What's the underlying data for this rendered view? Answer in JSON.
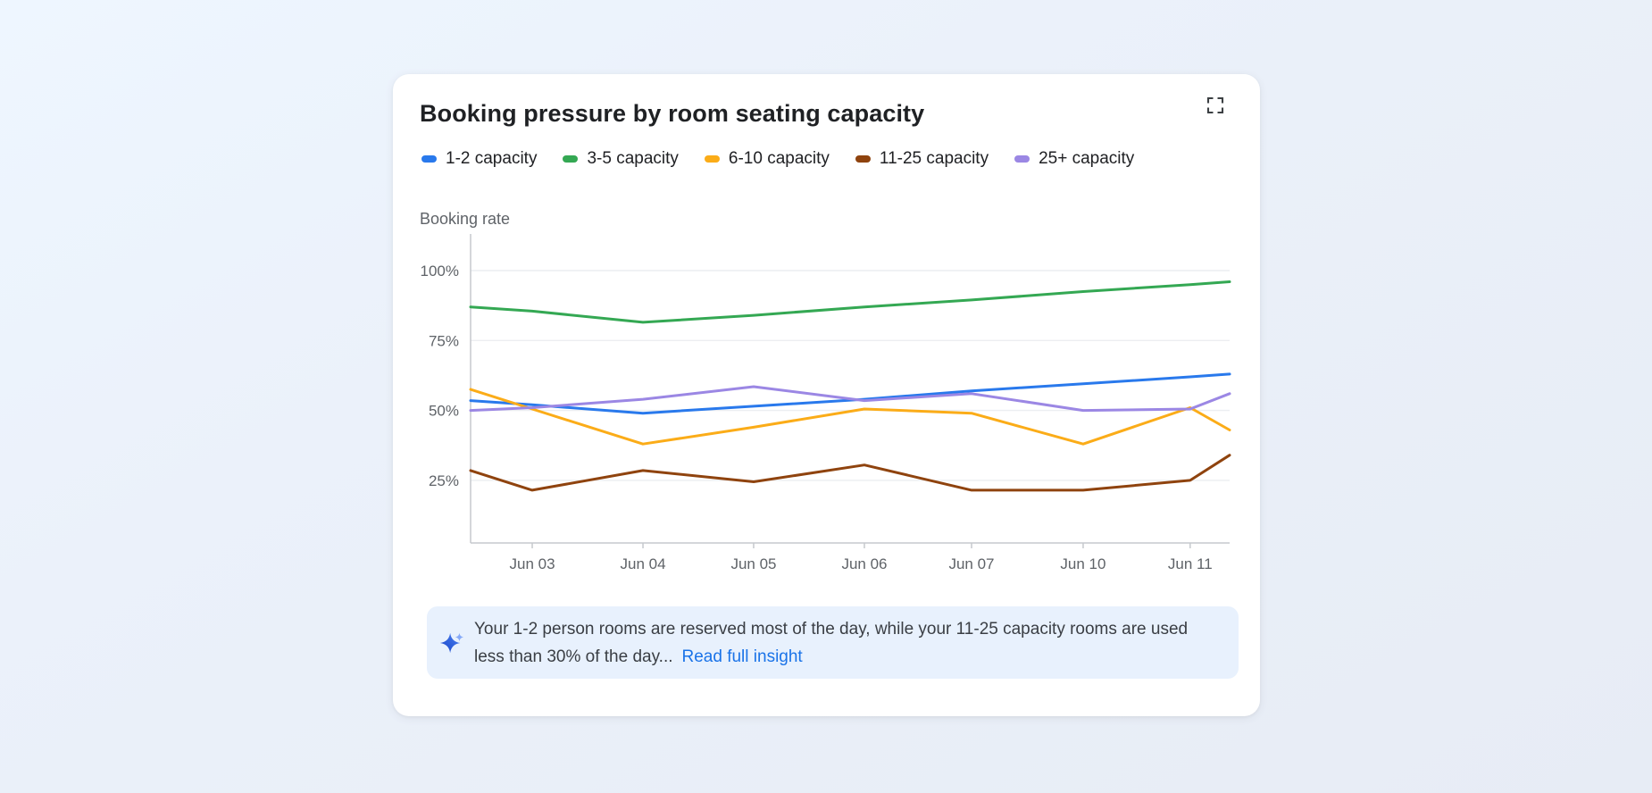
{
  "card": {
    "title": "Booking pressure by room seating capacity"
  },
  "icons": {
    "expand": "fullscreen-corners",
    "insight": "gemini-sparkle"
  },
  "chart_data": {
    "type": "line",
    "title": "Booking pressure by room seating capacity",
    "legend_position": "top",
    "grid": "horizontal",
    "y_axis": {
      "title": "Booking rate",
      "unit": "%",
      "range": [
        0,
        113
      ],
      "ticks": [
        {
          "label": "100%",
          "value": 100
        },
        {
          "label": "75%",
          "value": 75
        },
        {
          "label": "50%",
          "value": 50
        },
        {
          "label": "25%",
          "value": 25
        }
      ]
    },
    "x_axis": {
      "labels": [
        "Jun 03",
        "Jun 04",
        "Jun 05",
        "Jun 06",
        "Jun 07",
        "Jun 10",
        "Jun 11"
      ],
      "note": "series lines extend beyond the first and last labeled ticks to the plot edges"
    },
    "categories": [
      "",
      "Jun 03",
      "Jun 04",
      "Jun 05",
      "Jun 06",
      "Jun 07",
      "Jun 10",
      "Jun 11",
      ""
    ],
    "series": [
      {
        "name": "1-2 capacity",
        "color": "#2979ec",
        "values": [
          53.5,
          52,
          49,
          51.5,
          54,
          57,
          59.5,
          62,
          63
        ]
      },
      {
        "name": "3-5 capacity",
        "color": "#34a853",
        "values": [
          87,
          85.5,
          81.5,
          84,
          87,
          89.5,
          92.5,
          95,
          96
        ]
      },
      {
        "name": "6-10 capacity",
        "color": "#fbac18",
        "values": [
          57.5,
          50.5,
          38,
          44,
          50.5,
          49,
          38,
          51,
          43
        ]
      },
      {
        "name": "11-25 capacity",
        "color": "#8f430e",
        "values": [
          28.5,
          21.5,
          28.5,
          24.5,
          30.5,
          21.5,
          21.5,
          25,
          34
        ]
      },
      {
        "name": "25+ capacity",
        "color": "#9b87e4",
        "values": [
          50,
          51,
          54,
          58.5,
          53.5,
          56,
          50,
          50.5,
          56
        ]
      }
    ]
  },
  "insight": {
    "text": "Your 1-2 person rooms are reserved most of the day, while your 11-25 capacity rooms are used less than 30% of the day...",
    "link_label": "Read full insight"
  }
}
